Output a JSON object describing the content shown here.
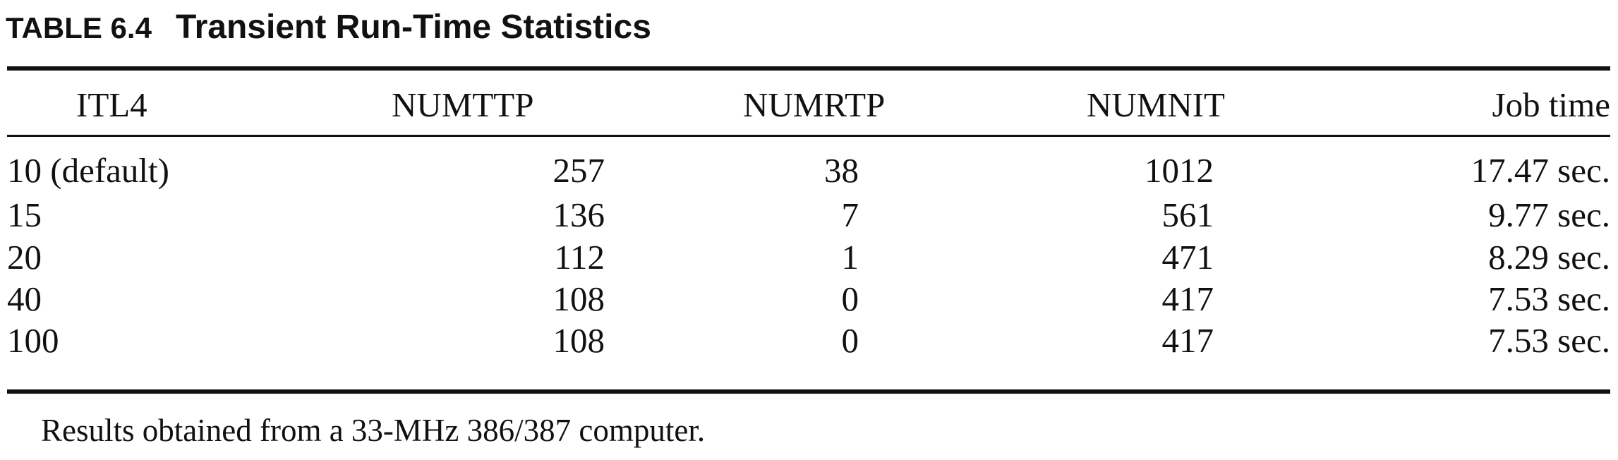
{
  "caption": {
    "label": "TABLE 6.4",
    "title": "Transient Run-Time Statistics"
  },
  "table": {
    "headers": [
      "ITL4",
      "NUMTTP",
      "NUMRTP",
      "NUMNIT",
      "Job time"
    ],
    "rows": [
      [
        "10 (default)",
        "257",
        "38",
        "1012",
        "17.47 sec."
      ],
      [
        "15",
        "136",
        "7",
        "561",
        "9.77 sec."
      ],
      [
        "20",
        "112",
        "1",
        "471",
        "8.29 sec."
      ],
      [
        "40",
        "108",
        "0",
        "417",
        "7.53 sec."
      ],
      [
        "100",
        "108",
        "0",
        "417",
        "7.53 sec."
      ]
    ]
  },
  "footnote": "Results obtained from a 33-MHz 386/387 computer."
}
